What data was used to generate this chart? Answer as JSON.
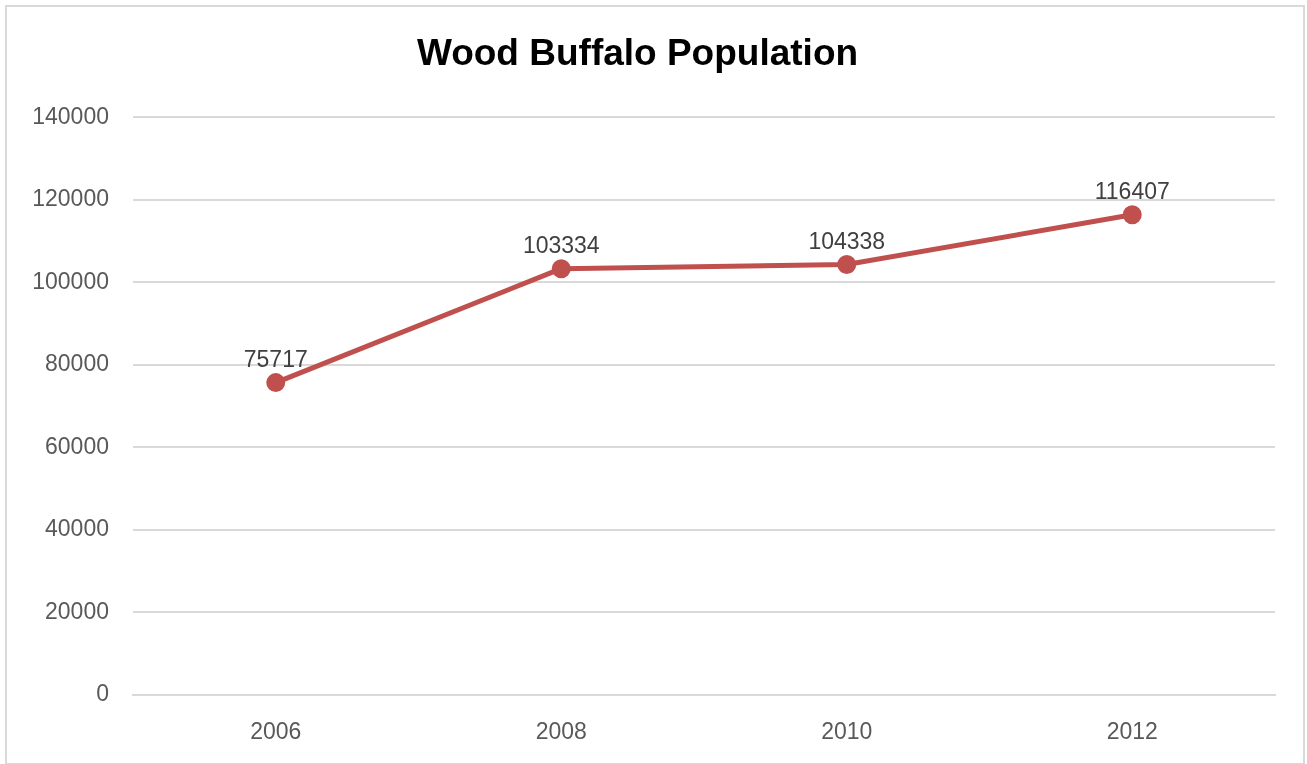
{
  "chart_data": {
    "type": "line",
    "title": "Wood Buffalo Population",
    "categories": [
      "2006",
      "2008",
      "2010",
      "2012"
    ],
    "series": [
      {
        "color": "#c0504d",
        "values": [
          75717,
          103334,
          104338,
          116407
        ]
      }
    ],
    "ylim": [
      0,
      140000
    ],
    "yticks": [
      0,
      20000,
      40000,
      60000,
      80000,
      100000,
      120000,
      140000
    ],
    "grid": "y",
    "data_labels": true,
    "marker": "circle",
    "line_style": "solid"
  }
}
